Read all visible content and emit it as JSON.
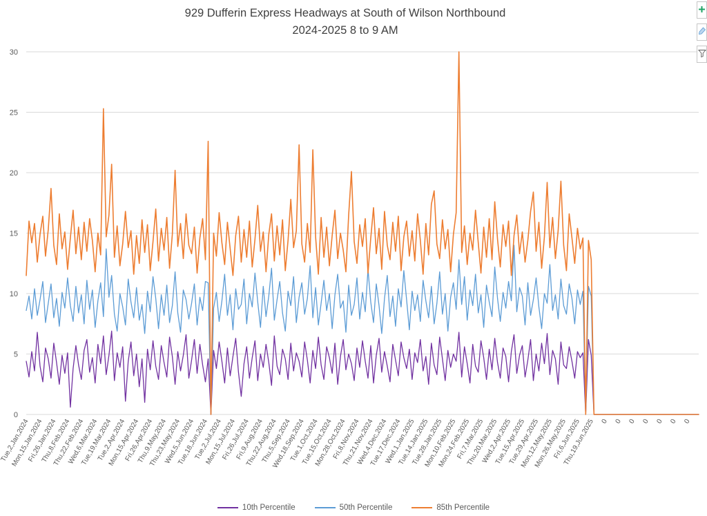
{
  "title": {
    "line1": "929 Dufferin Express Headways at South of Wilson Northbound",
    "line2": "2024-2025 8 to 9 AM"
  },
  "toolbar": {
    "buttons": [
      {
        "name": "chart-elements",
        "icon": "plus-icon"
      },
      {
        "name": "chart-styles",
        "icon": "paintbrush-icon"
      },
      {
        "name": "chart-filters",
        "icon": "funnel-icon"
      }
    ]
  },
  "colors": {
    "p10": "#7030A0",
    "p50": "#5B9BD5",
    "p85": "#ED7D31",
    "gridline": "#D9D9D9",
    "axis_text": "#595959",
    "title_text": "#404040"
  },
  "chart_data": {
    "type": "line",
    "title": "929 Dufferin Express Headways at South of Wilson Northbound 2024-2025 8 to 9 AM",
    "xlabel": "",
    "ylabel": "",
    "ylim": [
      0,
      30
    ],
    "yticks": [
      0,
      5,
      10,
      15,
      20,
      25,
      30
    ],
    "grid": true,
    "legend_position": "bottom",
    "points_per_tick": 5,
    "x_tick_labels": [
      "Tue,2,Jan,2024",
      "Mon,15,Jan,2024",
      "Fri,26,Jan,2024",
      "Thu,8,Feb,2024",
      "Thu,22,Feb,2024",
      "Wed,6,Mar,2024",
      "Tue,19,Mar,2024",
      "Tue,2,Apr,2024",
      "Mon,15,Apr,2024",
      "Fri,26,Apr,2024",
      "Thu,9,May,2024",
      "Thu,23,May,2024",
      "Wed,5,Jun,2024",
      "Tue,18,Jun,2024",
      "Tue,2,Jul,2024",
      "Mon,15,Jul,2024",
      "Fri,26,Jul,2024",
      "Fri,9,Aug,2024",
      "Thu,22,Aug,2024",
      "Thu,5,Sep,2024",
      "Wed,18,Sep,2024",
      "Tue,1,Oct,2024",
      "Tue,15,Oct,2024",
      "Mon,28,Oct,2024",
      "Fri,8,Nov,2024",
      "Thu,21,Nov,2024",
      "Wed,4,Dec,2024",
      "Tue,17,Dec,2024",
      "Wed,1,Jan,2025",
      "Tue,14,Jan,2025",
      "Tue,28,Jan,2025",
      "Mon,10,Feb,2025",
      "Mon,24,Feb,2025",
      "Fri,7,Mar,2025",
      "Thu,20,Mar,2025",
      "Wed,2,Apr,2025",
      "Tue,15,Apr,2025",
      "Tue,29,Apr,2025",
      "Mon,12,May,2025",
      "Mon,26,May,2025",
      "Fri,6,Jun,2025",
      "Thu,19,Jun,2025",
      "0",
      "0",
      "0",
      "0",
      "0",
      "0",
      "0"
    ],
    "series": [
      {
        "name": "10th Percentile",
        "color": "#7030A0",
        "values": [
          4.4,
          3.1,
          5.2,
          3.6,
          6.8,
          4.0,
          2.7,
          5.5,
          4.6,
          3.0,
          5.9,
          4.3,
          2.5,
          4.9,
          3.4,
          5.1,
          0.6,
          3.8,
          5.7,
          4.1,
          2.9,
          5.3,
          6.2,
          3.5,
          4.7,
          2.6,
          5.8,
          4.2,
          6.5,
          3.3,
          4.9,
          6.9,
          2.8,
          5.1,
          3.9,
          5.6,
          1.1,
          4.4,
          6.0,
          3.2,
          5.0,
          2.3,
          4.6,
          1.0,
          5.4,
          3.7,
          6.1,
          4.0,
          2.9,
          5.7,
          4.3,
          3.1,
          6.4,
          4.8,
          2.5,
          5.2,
          3.6,
          4.9,
          6.6,
          3.0,
          4.5,
          6.2,
          3.4,
          5.8,
          4.1,
          2.7,
          4.6,
          0.0,
          5.3,
          3.8,
          6.0,
          4.4,
          2.6,
          5.5,
          3.2,
          4.8,
          6.3,
          3.5,
          1.5,
          4.2,
          5.6,
          3.0,
          4.7,
          6.1,
          2.8,
          5.0,
          3.9,
          5.8,
          4.3,
          2.4,
          6.5,
          4.0,
          3.3,
          5.4,
          4.6,
          2.9,
          5.9,
          3.6,
          5.1,
          4.4,
          3.1,
          6.0,
          4.5,
          2.6,
          5.3,
          3.8,
          6.4,
          4.1,
          2.9,
          5.6,
          4.7,
          3.4,
          5.9,
          2.5,
          4.8,
          6.2,
          3.7,
          5.0,
          4.2,
          2.8,
          5.5,
          3.9,
          6.1,
          4.4,
          3.0,
          5.7,
          2.6,
          4.9,
          6.3,
          3.5,
          5.2,
          4.0,
          2.7,
          5.8,
          4.5,
          3.2,
          6.0,
          4.7,
          3.8,
          5.4,
          2.9,
          5.1,
          4.3,
          6.2,
          3.6,
          4.8,
          2.5,
          5.9,
          4.1,
          3.3,
          6.4,
          4.6,
          2.8,
          5.3,
          3.9,
          5.0,
          4.4,
          6.8,
          3.1,
          5.6,
          4.2,
          2.6,
          5.8,
          4.0,
          3.5,
          6.1,
          4.7,
          2.9,
          5.4,
          3.7,
          6.3,
          4.3,
          3.0,
          5.5,
          4.8,
          2.7,
          5.2,
          6.6,
          3.4,
          4.9,
          5.7,
          3.1,
          4.5,
          6.2,
          2.8,
          5.0,
          3.6,
          5.9,
          4.2,
          6.7,
          3.3,
          5.3,
          4.6,
          2.5,
          6.0,
          4.1,
          3.8,
          5.6,
          4.4,
          3.0,
          5.2,
          4.7,
          5.1,
          0.0,
          6.2,
          4.9,
          0.0,
          0.0,
          0.0,
          0,
          0,
          0,
          0,
          0,
          0,
          0,
          0,
          0,
          0,
          0,
          0,
          0,
          0,
          0,
          0,
          0,
          0,
          0,
          0,
          0,
          0,
          0,
          0,
          0,
          0,
          0,
          0,
          0,
          0,
          0,
          0,
          0,
          0,
          0,
          0
        ]
      },
      {
        "name": "50th Percentile",
        "color": "#5B9BD5",
        "values": [
          8.6,
          9.8,
          7.9,
          10.4,
          8.2,
          9.5,
          11.0,
          7.6,
          9.2,
          10.8,
          8.0,
          9.6,
          7.3,
          10.1,
          8.8,
          11.3,
          9.0,
          7.7,
          10.6,
          8.4,
          9.9,
          7.5,
          11.1,
          8.7,
          10.3,
          7.2,
          9.4,
          10.9,
          8.1,
          13.7,
          9.7,
          11.5,
          8.3,
          6.9,
          10.0,
          8.9,
          7.4,
          11.2,
          9.3,
          8.0,
          10.5,
          7.8,
          9.1,
          6.7,
          10.2,
          8.5,
          11.4,
          9.6,
          7.1,
          9.9,
          8.2,
          10.7,
          7.6,
          9.0,
          11.8,
          8.4,
          6.8,
          10.3,
          9.5,
          7.9,
          9.2,
          10.8,
          7.4,
          9.7,
          8.6,
          11.0,
          10.9,
          0.0,
          8.8,
          10.1,
          7.7,
          9.4,
          11.6,
          8.2,
          9.9,
          7.0,
          10.4,
          8.7,
          9.1,
          11.2,
          7.5,
          10.0,
          8.9,
          11.7,
          9.3,
          7.2,
          10.6,
          8.1,
          9.8,
          12.1,
          7.8,
          9.5,
          11.0,
          8.4,
          6.9,
          10.2,
          9.0,
          11.4,
          7.6,
          9.7,
          10.9,
          8.3,
          9.6,
          12.3,
          8.0,
          10.5,
          7.4,
          9.2,
          11.1,
          8.6,
          10.0,
          7.1,
          9.9,
          11.6,
          8.8,
          9.4,
          6.8,
          10.7,
          8.2,
          9.1,
          11.3,
          7.9,
          10.1,
          8.5,
          12.0,
          9.3,
          7.6,
          10.8,
          9.0,
          6.7,
          9.6,
          11.5,
          8.1,
          9.8,
          7.3,
          10.4,
          8.9,
          11.9,
          9.5,
          7.0,
          10.2,
          8.6,
          9.9,
          7.7,
          11.1,
          9.4,
          8.0,
          10.6,
          7.5,
          9.2,
          11.8,
          8.3,
          10.0,
          6.9,
          9.7,
          10.9,
          8.7,
          12.8,
          9.1,
          11.4,
          7.8,
          10.3,
          9.0,
          11.6,
          8.4,
          9.9,
          7.2,
          10.7,
          9.3,
          8.1,
          12.2,
          9.6,
          7.7,
          10.1,
          8.8,
          11.0,
          9.4,
          14.0,
          8.5,
          10.5,
          9.8,
          7.4,
          10.9,
          8.2,
          9.5,
          11.3,
          8.9,
          7.1,
          10.0,
          9.2,
          12.4,
          8.6,
          9.9,
          7.9,
          11.2,
          9.0,
          8.3,
          10.8,
          9.6,
          7.5,
          10.3,
          9.1,
          10.2,
          0.0,
          10.6,
          9.8,
          0.0,
          0.0,
          0.0,
          0,
          0,
          0,
          0,
          0,
          0,
          0,
          0,
          0,
          0,
          0,
          0,
          0,
          0,
          0,
          0,
          0,
          0,
          0,
          0,
          0,
          0,
          0,
          0,
          0,
          0,
          0,
          0,
          0,
          0,
          0,
          0,
          0,
          0,
          0,
          0
        ]
      },
      {
        "name": "85th Percentile",
        "color": "#ED7D31",
        "values": [
          11.5,
          16.0,
          14.2,
          15.8,
          12.6,
          14.9,
          16.4,
          13.1,
          15.3,
          18.7,
          14.0,
          12.4,
          16.6,
          13.7,
          15.1,
          12.0,
          14.6,
          16.9,
          13.3,
          15.5,
          12.8,
          15.9,
          13.5,
          16.2,
          14.4,
          11.8,
          15.0,
          13.2,
          25.3,
          14.7,
          16.5,
          20.7,
          13.0,
          15.6,
          12.3,
          14.1,
          16.8,
          13.8,
          15.2,
          11.6,
          14.8,
          12.5,
          16.1,
          13.4,
          15.7,
          11.9,
          14.3,
          17.0,
          12.7,
          15.4,
          13.6,
          16.3,
          12.1,
          14.9,
          20.2,
          13.9,
          15.8,
          12.9,
          16.6,
          14.0,
          13.3,
          15.5,
          11.7,
          14.6,
          16.2,
          12.8,
          22.6,
          0.0,
          15.0,
          13.1,
          16.7,
          14.2,
          12.4,
          15.9,
          13.7,
          11.5,
          14.8,
          16.4,
          12.6,
          15.3,
          13.0,
          16.0,
          12.2,
          14.5,
          17.3,
          13.5,
          15.1,
          11.8,
          14.9,
          16.6,
          12.7,
          15.6,
          13.2,
          16.1,
          11.9,
          14.4,
          17.8,
          13.8,
          15.2,
          22.3,
          14.1,
          12.6,
          15.8,
          13.4,
          21.9,
          14.7,
          11.6,
          16.3,
          13.0,
          15.5,
          12.3,
          14.8,
          16.9,
          12.9,
          15.0,
          13.6,
          11.8,
          16.5,
          20.1,
          14.3,
          12.5,
          15.7,
          13.9,
          16.2,
          11.7,
          14.6,
          17.1,
          13.3,
          15.4,
          12.0,
          16.8,
          14.0,
          12.8,
          15.9,
          13.5,
          16.4,
          11.9,
          14.7,
          16.0,
          13.1,
          15.2,
          12.7,
          16.6,
          14.4,
          11.6,
          15.8,
          13.2,
          17.4,
          18.5,
          14.1,
          12.9,
          16.1,
          13.7,
          15.3,
          11.8,
          14.9,
          16.7,
          30.0,
          13.4,
          15.6,
          12.4,
          15.0,
          13.6,
          16.9,
          14.2,
          11.7,
          15.5,
          13.0,
          16.2,
          12.8,
          17.6,
          14.5,
          12.2,
          15.7,
          13.9,
          16.0,
          11.5,
          14.8,
          16.5,
          13.3,
          15.1,
          12.6,
          14.4,
          16.8,
          18.4,
          13.5,
          15.9,
          12.1,
          14.7,
          19.2,
          13.8,
          16.3,
          12.9,
          15.2,
          19.3,
          14.0,
          11.9,
          16.6,
          14.6,
          12.5,
          15.4,
          13.7,
          14.6,
          0.0,
          14.4,
          12.8,
          0.0,
          0.0,
          0.0,
          0,
          0,
          0,
          0,
          0,
          0,
          0,
          0,
          0,
          0,
          0,
          0,
          0,
          0,
          0,
          0,
          0,
          0,
          0,
          0,
          0,
          0,
          0,
          0,
          0,
          0,
          0,
          0,
          0,
          0,
          0,
          0,
          0,
          0,
          0,
          0
        ]
      }
    ]
  }
}
